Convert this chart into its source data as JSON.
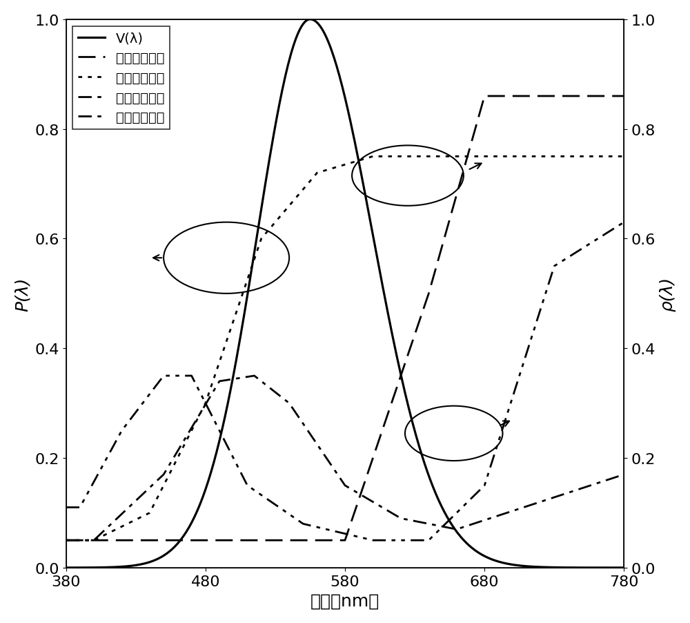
{
  "xlim": [
    380,
    780
  ],
  "ylim_left": [
    0.0,
    1.0
  ],
  "ylim_right": [
    0.0,
    1.0
  ],
  "xlabel": "波长（nm）",
  "ylabel_left": "P(λ)",
  "ylabel_right": "ρ(λ)",
  "xticks": [
    380,
    480,
    580,
    680,
    780
  ],
  "yticks_left": [
    0.0,
    0.2,
    0.4,
    0.6,
    0.8,
    1.0
  ],
  "yticks_right": [
    0.0,
    0.2,
    0.4,
    0.6,
    0.8,
    1.0
  ],
  "legend_labels": [
    "V(λ)",
    "红色样反射率",
    "黄色样反射率",
    "绿色样反射率",
    "蓝色样反射率"
  ],
  "background_color": "#ffffff",
  "line_color": "#000000",
  "fontsize_labels": 18,
  "fontsize_ticks": 16,
  "fontsize_legend": 14
}
